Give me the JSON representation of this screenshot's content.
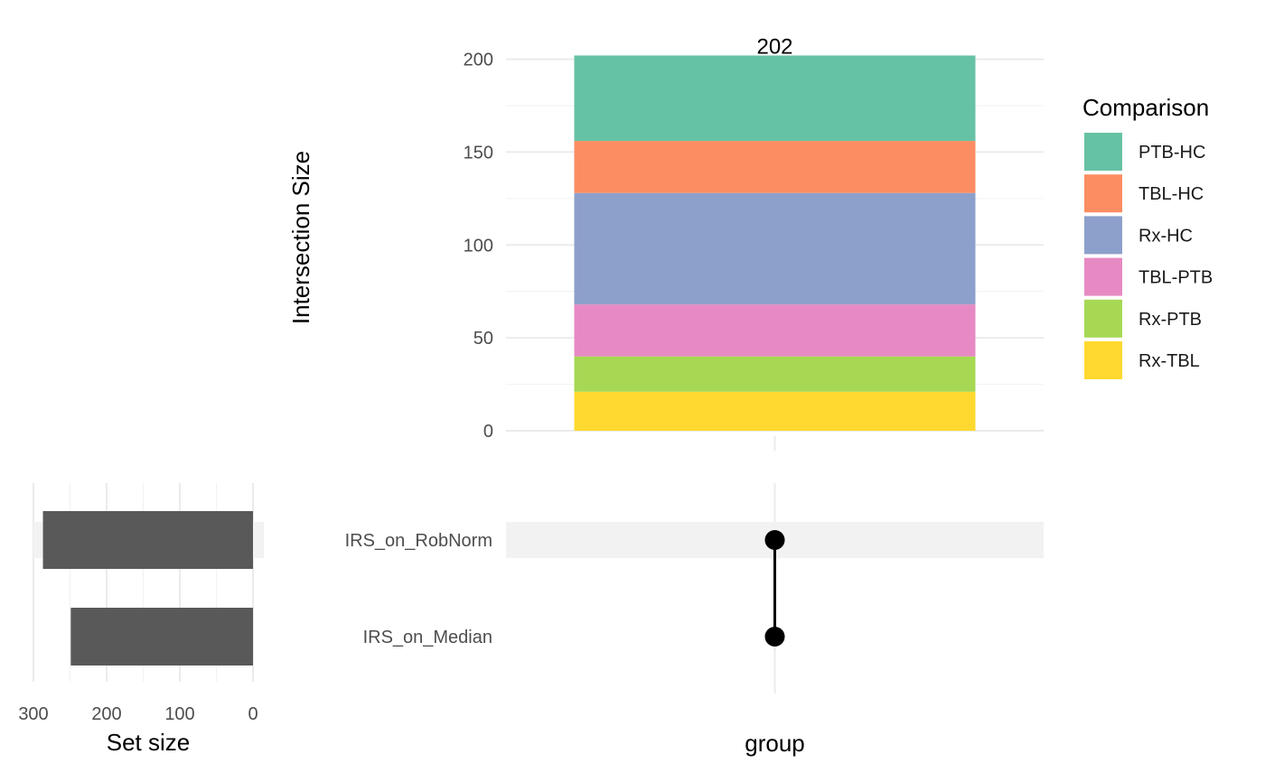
{
  "chart_data": [
    {
      "type": "bar",
      "stacked": true,
      "panel": "intersection-size",
      "categories": [
        "group"
      ],
      "ylabel": "Intersection Size",
      "xlabel": "",
      "ylim": [
        0,
        210
      ],
      "yticks": [
        0,
        50,
        100,
        150,
        200
      ],
      "total_label": "202",
      "grid": true,
      "series": [
        {
          "name": "Rx-TBL",
          "values": [
            21
          ],
          "color": "#FFD92F"
        },
        {
          "name": "Rx-PTB",
          "values": [
            19
          ],
          "color": "#A6D854"
        },
        {
          "name": "TBL-PTB",
          "values": [
            28
          ],
          "color": "#E78AC3"
        },
        {
          "name": "Rx-HC",
          "values": [
            60
          ],
          "color": "#8DA0CB"
        },
        {
          "name": "TBL-HC",
          "values": [
            28
          ],
          "color": "#FC8D62"
        },
        {
          "name": "PTB-HC",
          "values": [
            46
          ],
          "color": "#66C2A5"
        }
      ],
      "legend": {
        "title": "Comparison",
        "placement": "right",
        "entries": [
          "PTB-HC",
          "TBL-HC",
          "Rx-HC",
          "TBL-PTB",
          "Rx-PTB",
          "Rx-TBL"
        ]
      }
    },
    {
      "type": "bar",
      "orientation": "horizontal",
      "panel": "set-size",
      "categories": [
        "IRS_on_RobNorm",
        "IRS_on_Median"
      ],
      "values": [
        287,
        249
      ],
      "xlabel": "Set size",
      "xlim": [
        300,
        0
      ],
      "xticks": [
        300,
        200,
        100,
        0
      ],
      "reversed": true,
      "color": "#595959",
      "grid": true
    },
    {
      "type": "scatter",
      "panel": "intersection-matrix",
      "sets": [
        "IRS_on_RobNorm",
        "IRS_on_Median"
      ],
      "columns": [
        "group"
      ],
      "membership": [
        [
          true,
          true
        ]
      ],
      "xlabel": "group",
      "dot_color": "#000000"
    }
  ]
}
